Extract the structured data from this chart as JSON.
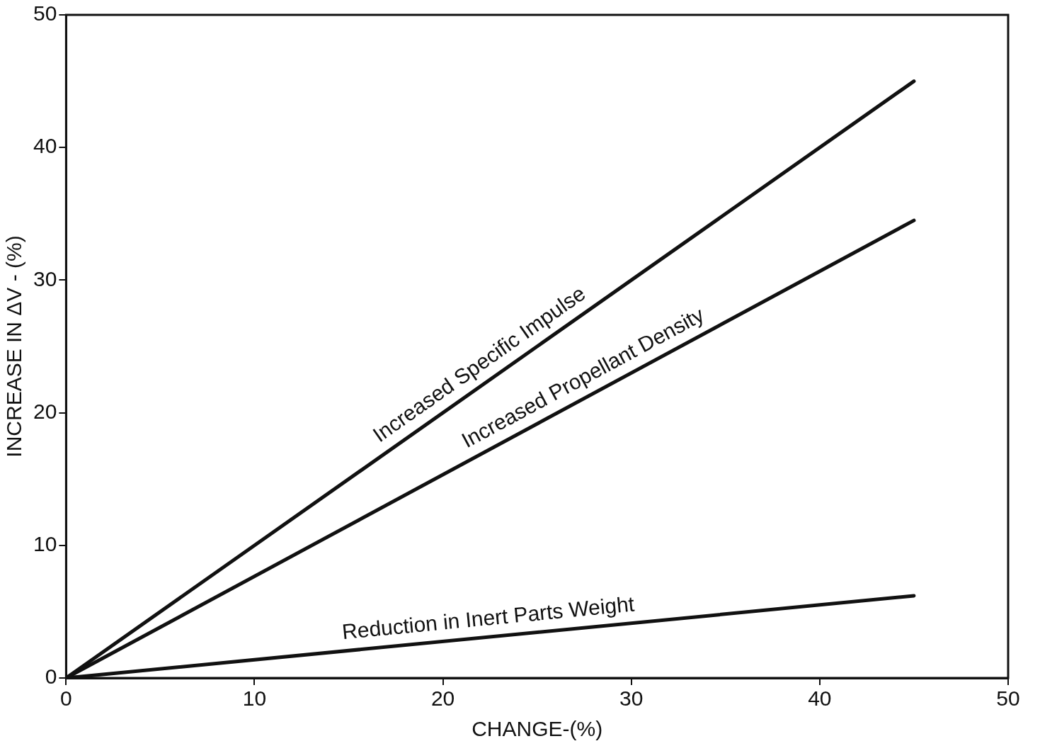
{
  "chart_data": {
    "type": "line",
    "xlabel": "CHANGE-(%)",
    "ylabel": "INCREASE IN ΔV - (%)",
    "xlim": [
      0,
      50
    ],
    "xticks": [
      0,
      10,
      20,
      30,
      40,
      50
    ],
    "ylim": [
      0,
      50
    ],
    "yticks": [
      0,
      10,
      20,
      30,
      40,
      50
    ],
    "x": [
      0,
      45
    ],
    "series": [
      {
        "name": "Increased Specific Impulse",
        "color": "#111111",
        "values": [
          0,
          45
        ]
      },
      {
        "name": "Increased Propellant Density",
        "color": "#111111",
        "values": [
          0,
          34.5
        ]
      },
      {
        "name": "Reduction in Inert Parts Weight",
        "color": "#111111",
        "values": [
          0,
          6.2
        ]
      }
    ],
    "grid": false,
    "legend": false,
    "marker": "none",
    "line_style": "solid"
  }
}
